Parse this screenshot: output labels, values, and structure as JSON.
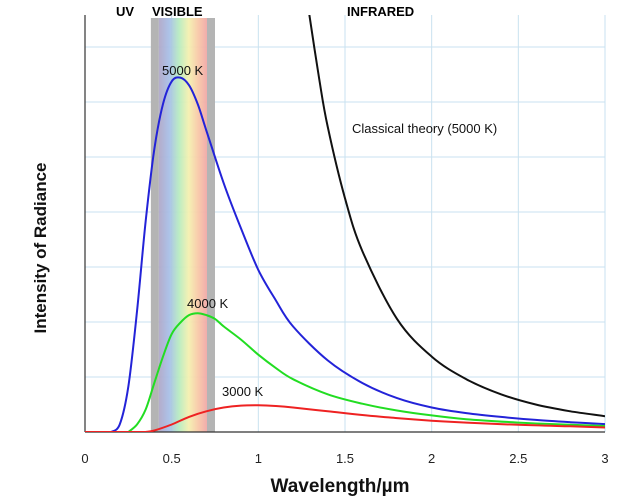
{
  "chart_data": {
    "type": "line",
    "xlabel": "Wavelength/µm",
    "ylabel": "Intensity of Radiance",
    "xlim": [
      0,
      3
    ],
    "ylim": [
      0,
      1.0
    ],
    "x_ticks": [
      "0",
      "0.5",
      "1",
      "1.5",
      "2",
      "2.5",
      "3"
    ],
    "grid": true,
    "regions": [
      {
        "label": "UV",
        "color": "#cc44cc"
      },
      {
        "label": "VISIBLE",
        "color": "#a0a0a0",
        "x_range": [
          0.38,
          0.75
        ]
      },
      {
        "label": "INFRARED",
        "color": "#ee3333"
      }
    ],
    "series": [
      {
        "name": "5000 K",
        "color": "#2323d8",
        "x": [
          0.15,
          0.2,
          0.25,
          0.3,
          0.35,
          0.4,
          0.45,
          0.5,
          0.55,
          0.6,
          0.65,
          0.7,
          0.8,
          0.9,
          1.0,
          1.1,
          1.2,
          1.4,
          1.6,
          1.8,
          2.0,
          2.2,
          2.4,
          2.6,
          2.8,
          3.0
        ],
        "y": [
          0.0,
          0.02,
          0.12,
          0.32,
          0.56,
          0.75,
          0.87,
          0.93,
          0.94,
          0.92,
          0.87,
          0.8,
          0.66,
          0.54,
          0.43,
          0.35,
          0.28,
          0.19,
          0.13,
          0.09,
          0.065,
          0.05,
          0.04,
          0.032,
          0.026,
          0.021
        ]
      },
      {
        "name": "4000 K",
        "color": "#22dd22",
        "x": [
          0.25,
          0.3,
          0.35,
          0.4,
          0.45,
          0.5,
          0.55,
          0.6,
          0.65,
          0.7,
          0.75,
          0.8,
          0.9,
          1.0,
          1.1,
          1.2,
          1.4,
          1.6,
          1.8,
          2.0,
          2.2,
          2.5,
          2.8,
          3.0
        ],
        "y": [
          0.0,
          0.02,
          0.06,
          0.13,
          0.2,
          0.26,
          0.29,
          0.31,
          0.315,
          0.31,
          0.3,
          0.28,
          0.245,
          0.205,
          0.17,
          0.14,
          0.1,
          0.075,
          0.057,
          0.044,
          0.034,
          0.025,
          0.019,
          0.016
        ]
      },
      {
        "name": "3000 K",
        "color": "#ee2222",
        "x": [
          0.35,
          0.4,
          0.5,
          0.6,
          0.7,
          0.8,
          0.9,
          1.0,
          1.1,
          1.2,
          1.4,
          1.6,
          1.8,
          2.0,
          2.2,
          2.5,
          2.8,
          3.0
        ],
        "y": [
          0.0,
          0.004,
          0.02,
          0.04,
          0.055,
          0.065,
          0.07,
          0.071,
          0.069,
          0.065,
          0.055,
          0.045,
          0.037,
          0.03,
          0.025,
          0.019,
          0.015,
          0.012
        ]
      },
      {
        "name": "Classical theory (5000 K)",
        "color": "#111111",
        "x": [
          1.29,
          1.35,
          1.4,
          1.5,
          1.6,
          1.8,
          2.0,
          2.2,
          2.4,
          2.6,
          2.8,
          3.0
        ],
        "y": [
          1.12,
          0.94,
          0.81,
          0.62,
          0.48,
          0.3,
          0.2,
          0.14,
          0.1,
          0.073,
          0.055,
          0.042
        ]
      }
    ],
    "annotations": [
      "5000 K",
      "4000 K",
      "3000 K",
      "Classical theory (5000 K)"
    ]
  }
}
